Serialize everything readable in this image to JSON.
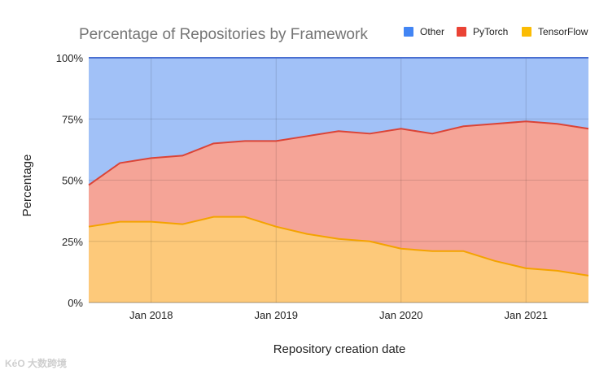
{
  "chart_data": {
    "type": "area",
    "stacked": true,
    "title": "Percentage of Repositories by Framework",
    "xlabel": "Repository creation date",
    "ylabel": "Percentage",
    "ylim": [
      0,
      100
    ],
    "y_ticks": [
      0,
      25,
      50,
      75,
      100
    ],
    "y_tick_labels": [
      "0%",
      "25%",
      "50%",
      "75%",
      "100%"
    ],
    "x_range": [
      "2017-07",
      "2021-07"
    ],
    "x_ticks": [
      "2018-01",
      "2019-01",
      "2020-01",
      "2021-01"
    ],
    "x_tick_labels": [
      "Jan 2018",
      "Jan 2019",
      "Jan 2020",
      "Jan 2021"
    ],
    "gridlines": true,
    "legend_position": "top-right",
    "legend": [
      "Other",
      "PyTorch",
      "TensorFlow"
    ],
    "x": [
      "2017-07",
      "2017-10",
      "2018-01",
      "2018-04",
      "2018-07",
      "2018-10",
      "2019-01",
      "2019-04",
      "2019-07",
      "2019-10",
      "2020-01",
      "2020-04",
      "2020-07",
      "2020-10",
      "2021-01",
      "2021-04",
      "2021-07"
    ],
    "series": [
      {
        "name": "TensorFlow",
        "color": "#f4a300",
        "fill": "#fdc97a",
        "values": [
          31,
          33,
          33,
          32,
          35,
          35,
          31,
          28,
          26,
          25,
          22,
          21,
          21,
          17,
          14,
          13,
          11
        ]
      },
      {
        "name": "PyTorch",
        "color": "#db4437",
        "fill": "#f5a497",
        "values": [
          17,
          24,
          26,
          28,
          30,
          31,
          35,
          40,
          44,
          44,
          49,
          48,
          51,
          56,
          60,
          60,
          60
        ]
      },
      {
        "name": "Other",
        "color": "#4a6fd1",
        "fill": "#a1c1f7",
        "values": [
          52,
          43,
          41,
          40,
          35,
          34,
          34,
          32,
          30,
          31,
          29,
          31,
          28,
          27,
          26,
          27,
          29
        ]
      }
    ]
  },
  "legend_items": [
    {
      "label": "Other",
      "color": "#4285f4"
    },
    {
      "label": "PyTorch",
      "color": "#ea4335"
    },
    {
      "label": "TensorFlow",
      "color": "#fbbc04"
    }
  ],
  "watermark": "KéO 大数跨境"
}
